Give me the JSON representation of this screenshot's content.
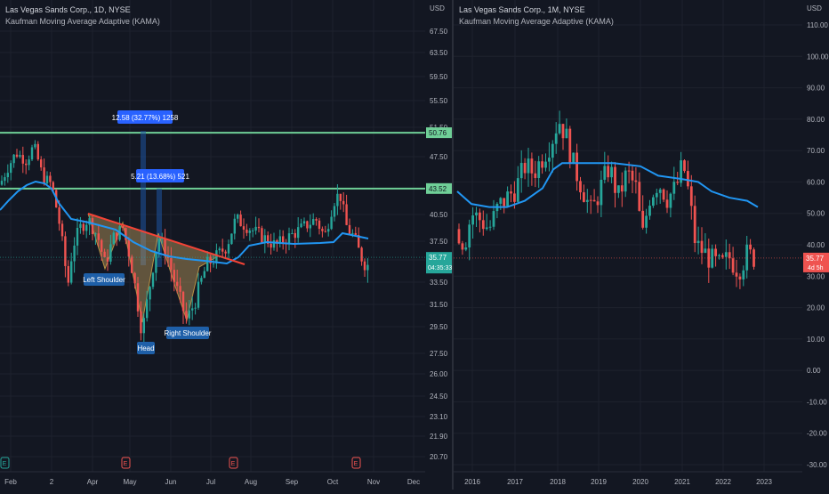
{
  "left": {
    "title": "Las Vegas Sands Corp., 1D, NYSE",
    "indicator": "Kaufman Moving Average Adaptive (KAMA)",
    "currency": "USD",
    "price_labels": [
      "67.50",
      "63.50",
      "59.50",
      "55.50",
      "51.50",
      "47.50",
      "43.50",
      "40.50",
      "37.50",
      "35.50",
      "33.50",
      "31.50",
      "29.50",
      "27.50",
      "26.00",
      "24.50",
      "23.10",
      "21.90",
      "20.70"
    ],
    "price_values": [
      67.5,
      63.5,
      59.5,
      55.5,
      51.5,
      47.5,
      43.5,
      40.5,
      37.5,
      35.5,
      33.5,
      31.5,
      29.5,
      27.5,
      26.0,
      24.5,
      23.1,
      21.9,
      20.7
    ],
    "x_labels": [
      "Feb",
      "2",
      "Apr",
      "May",
      "Jun",
      "Jul",
      "Aug",
      "Sep",
      "Oct",
      "Nov",
      "Dec"
    ],
    "resistance_upper": "50.76",
    "resistance_lower": "43.52",
    "current_price": "35.77",
    "countdown": "04:35:33",
    "measure_upper": "12.58 (32.77%) 1258",
    "measure_lower": "5.21 (13.68%) 521",
    "pattern_labels": {
      "left_shoulder": "Left Shoulder",
      "head": "Head",
      "right_shoulder": "Right Shoulder"
    },
    "event_markers": [
      "E",
      "E",
      "E",
      "E"
    ],
    "colors": {
      "up": "#26a69a",
      "down": "#ef5350",
      "kama": "#2196f3",
      "level": "#6fcf97",
      "pattern_fill": "#c0a060",
      "trend": "#f44336"
    }
  },
  "right": {
    "title": "Las Vegas Sands Corp., 1M, NYSE",
    "indicator": "Kaufman Moving Average Adaptive (KAMA)",
    "currency": "USD",
    "price_labels": [
      "110.00",
      "100.00",
      "90.00",
      "80.00",
      "70.00",
      "60.00",
      "50.00",
      "40.00",
      "30.00",
      "20.00",
      "10.00",
      "0.00",
      "-10.00",
      "-20.00",
      "-30.00"
    ],
    "price_values": [
      110,
      100,
      90,
      80,
      70,
      60,
      50,
      40,
      30,
      20,
      10,
      0,
      -10,
      -20,
      -30
    ],
    "x_labels": [
      "2016",
      "2017",
      "2018",
      "2019",
      "2020",
      "2021",
      "2022",
      "2023"
    ],
    "current_price": "35.77",
    "countdown": "4d 5h"
  },
  "chart_data": [
    {
      "type": "candlestick",
      "title": "Las Vegas Sands Corp., 1D, NYSE",
      "ylim": [
        20.0,
        69.0
      ],
      "annotations": [
        "Left Shoulder",
        "Head",
        "Right Shoulder",
        "12.58 (32.77%) 1258",
        "5.21 (13.68%) 521"
      ],
      "levels": [
        50.76,
        43.52
      ],
      "last": 35.77
    },
    {
      "type": "candlestick",
      "title": "Las Vegas Sands Corp., 1M, NYSE",
      "ylim": [
        -32,
        113
      ],
      "last": 35.77
    }
  ]
}
